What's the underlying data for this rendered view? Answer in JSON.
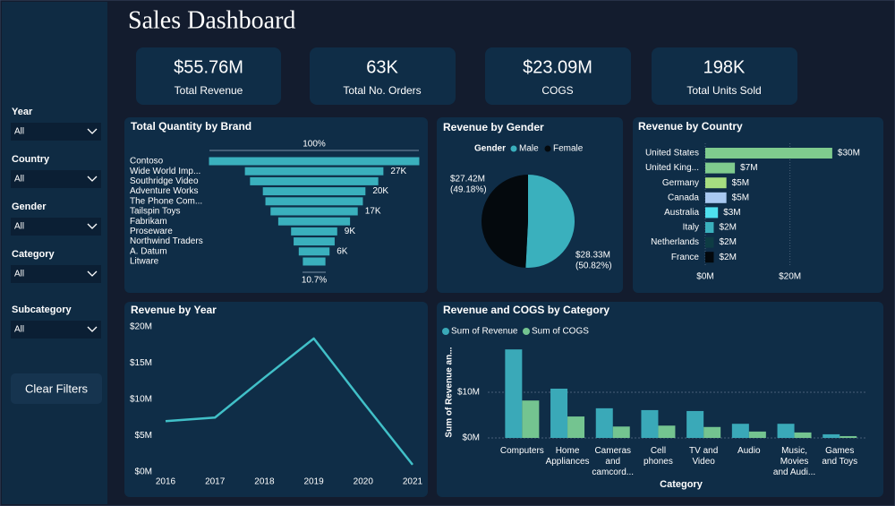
{
  "header": {
    "title": "Sales Dashboard"
  },
  "filters": [
    {
      "label": "Year",
      "value": "All"
    },
    {
      "label": "Country",
      "value": "All"
    },
    {
      "label": "Gender",
      "value": "All"
    },
    {
      "label": "Category",
      "value": "All"
    },
    {
      "label": "Subcategory",
      "value": "All"
    }
  ],
  "clear_filters": "Clear Filters",
  "kpis": [
    {
      "value": "$55.76M",
      "label": "Total Revenue"
    },
    {
      "value": "63K",
      "label": "Total No. Orders"
    },
    {
      "value": "$23.09M",
      "label": "COGS"
    },
    {
      "value": "198K",
      "label": "Total Units Sold"
    }
  ],
  "chart_data": [
    {
      "type": "funnel",
      "title": "Total Quantity by Brand",
      "categories": [
        "Contoso",
        "Wide World Imp...",
        "Southridge Video",
        "Adventure Works",
        "The Phone Com...",
        "Tailspin Toys",
        "Fabrikam",
        "Proseware",
        "Northwind Traders",
        "A. Datum",
        "Litware"
      ],
      "values": [
        41000,
        27000,
        25000,
        20000,
        19000,
        17000,
        14000,
        9000,
        8000,
        6000,
        4400
      ],
      "value_labels": [
        null,
        "27K",
        null,
        "20K",
        null,
        "17K",
        null,
        "9K",
        null,
        "6K",
        null
      ],
      "first_label": "100%",
      "last_label": "10.7%",
      "color": "#3ab0bd"
    },
    {
      "type": "pie",
      "title": "Revenue by Gender",
      "legend_title": "Gender",
      "categories": [
        "Male",
        "Female"
      ],
      "values": [
        28330000,
        27420000
      ],
      "value_labels": [
        "$28.33M",
        "$27.42M"
      ],
      "percent_labels": [
        "(50.82%)",
        "(49.18%)"
      ],
      "colors": [
        "#3ab0bd",
        "#04090d"
      ]
    },
    {
      "type": "hbar",
      "title": "Revenue by Country",
      "categories": [
        "United States",
        "United King...",
        "Germany",
        "Canada",
        "Australia",
        "Italy",
        "Netherlands",
        "France"
      ],
      "values": [
        30000000,
        7000000,
        5000000,
        5000000,
        3000000,
        2000000,
        2000000,
        2000000
      ],
      "value_labels": [
        "$30M",
        "$7M",
        "$5M",
        "$5M",
        "$3M",
        "$2M",
        "$2M",
        "$2M"
      ],
      "colors": [
        "#7fcb8e",
        "#7fcb8e",
        "#a6dd80",
        "#a8c8f0",
        "#4fe0ee",
        "#3ab0bd",
        "#0e3c44",
        "#03080c"
      ],
      "xlim": [
        0,
        37000000
      ],
      "xticks": [
        {
          "value": 0,
          "label": "$0M"
        },
        {
          "value": 20000000,
          "label": "$20M"
        }
      ],
      "grid": true
    },
    {
      "type": "line",
      "title": "Revenue by Year",
      "categories": [
        "2016",
        "2017",
        "2018",
        "2019",
        "2020",
        "2021"
      ],
      "values": [
        7000000,
        7500000,
        13000000,
        18400000,
        9600000,
        1000000
      ],
      "color": "#41c0c8",
      "ylim": [
        0,
        20000000
      ],
      "yticks": [
        {
          "value": 0,
          "label": "$0M"
        },
        {
          "value": 5000000,
          "label": "$5M"
        },
        {
          "value": 10000000,
          "label": "$10M"
        },
        {
          "value": 15000000,
          "label": "$15M"
        },
        {
          "value": 20000000,
          "label": "$20M"
        }
      ]
    },
    {
      "type": "groupedbar",
      "title": "Revenue and COGS by Category",
      "x_label": "Category",
      "y_label": "Sum of Revenue an...",
      "categories": [
        "Computers",
        "Home Appliances",
        "Cameras and camcord...",
        "Cell phones",
        "TV and Video",
        "Audio",
        "Music, Movies and Audi...",
        "Games and Toys"
      ],
      "series": [
        {
          "name": "Sum of Revenue",
          "color": "#3aa9b8",
          "values": [
            19400000,
            10800000,
            6500000,
            6100000,
            5900000,
            3100000,
            3100000,
            800000
          ]
        },
        {
          "name": "Sum of COGS",
          "color": "#74c490",
          "values": [
            8200000,
            4700000,
            2500000,
            2700000,
            2400000,
            1400000,
            1200000,
            400000
          ]
        }
      ],
      "ylim": [
        0,
        21000000
      ],
      "yticks": [
        {
          "value": 0,
          "label": "$0M"
        },
        {
          "value": 10000000,
          "label": "$10M"
        }
      ],
      "grid": true
    }
  ]
}
